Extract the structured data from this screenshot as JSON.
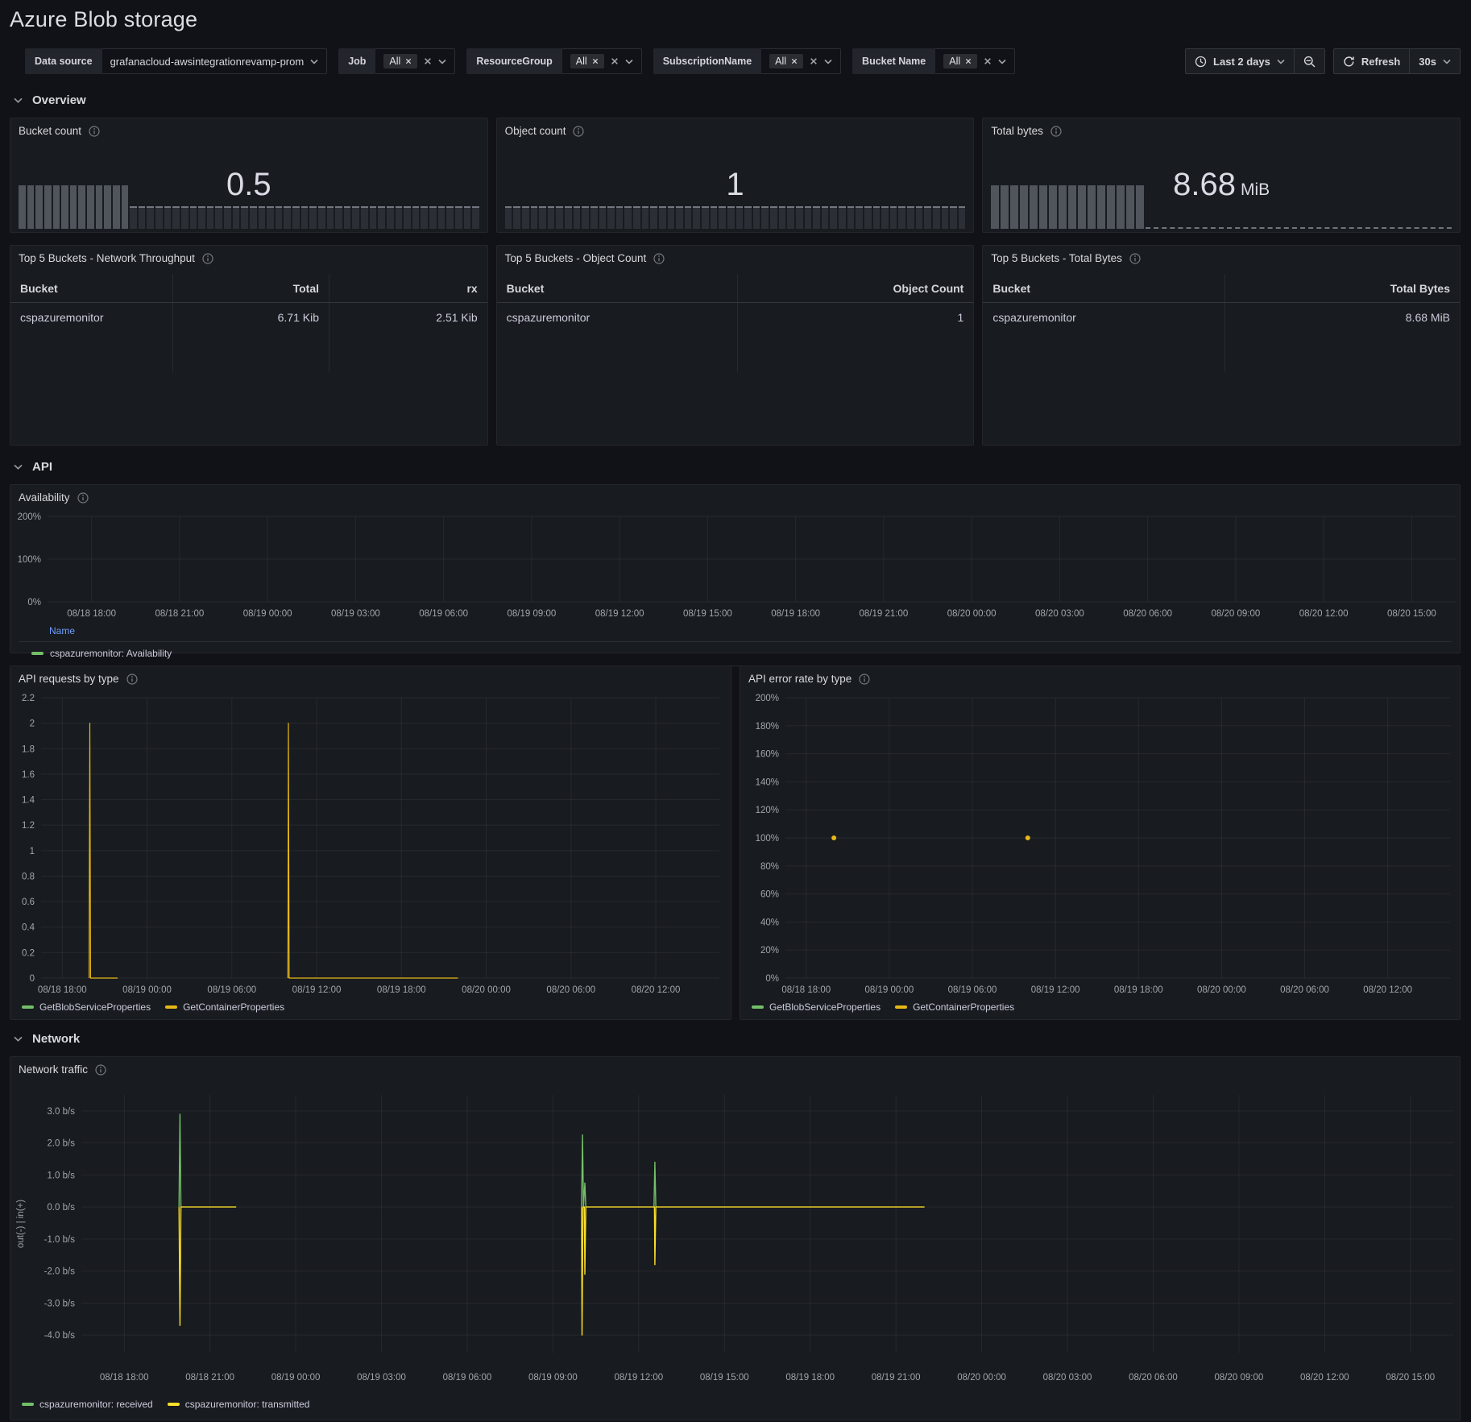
{
  "page": {
    "title": "Azure Blob storage"
  },
  "toolbar": {
    "filters": [
      {
        "label": "Data source",
        "type": "select",
        "value": "grafanacloud-awsintegrationrevamp-prom"
      },
      {
        "label": "Job",
        "type": "multi",
        "chip": "All"
      },
      {
        "label": "ResourceGroup",
        "type": "multi",
        "chip": "All"
      },
      {
        "label": "SubscriptionName",
        "type": "multi",
        "chip": "All"
      },
      {
        "label": "Bucket Name",
        "type": "multi",
        "chip": "All"
      }
    ],
    "time_range": "Last 2 days",
    "refresh_label": "Refresh",
    "refresh_interval": "30s"
  },
  "icons": {
    "clock-icon": "clock face",
    "chevron-down-icon": "v",
    "zoom-out-icon": "magnifier with minus",
    "refresh-icon": "circular arrow",
    "info-icon": "circled i",
    "close-icon": "x",
    "section-chevron-icon": "v"
  },
  "sections": {
    "overview": "Overview",
    "api": "API",
    "network": "Network"
  },
  "stats": [
    {
      "title": "Bucket count",
      "value": "0.5",
      "unit": "",
      "gauge": {
        "cells_total": 54,
        "cells_lit": 13,
        "unlit_style": "cells"
      }
    },
    {
      "title": "Object count",
      "value": "1",
      "unit": "",
      "gauge": {
        "cells_total": 54,
        "cells_lit": 0,
        "unlit_style": "cells"
      }
    },
    {
      "title": "Total bytes",
      "value": "8.68",
      "unit": "MiB",
      "gauge": {
        "cells_total": 54,
        "cells_lit": 16,
        "unlit_style": "line"
      }
    }
  ],
  "tables": [
    {
      "title": "Top 5 Buckets - Network Throughput",
      "columns": [
        "Bucket",
        "Total",
        "rx"
      ],
      "col_template": "202px 194px 1fr",
      "rows": [
        [
          "cspazuremonitor",
          "6.71 Kib",
          "2.51 Kib"
        ]
      ]
    },
    {
      "title": "Top 5 Buckets - Object Count",
      "columns": [
        "Bucket",
        "Object Count"
      ],
      "col_template": "299px 1fr",
      "rows": [
        [
          "cspazuremonitor",
          "1"
        ]
      ]
    },
    {
      "title": "Top 5 Buckets - Total Bytes",
      "columns": [
        "Bucket",
        "Total Bytes"
      ],
      "col_template": "301px 1fr",
      "rows": [
        [
          "cspazuremonitor",
          "8.68 MiB"
        ]
      ]
    }
  ],
  "colors": {
    "green": "#73bf69",
    "yellow": "#e6b817",
    "yellow_bright": "#fade2a",
    "blue": "#6e9fff"
  },
  "chart_data": [
    {
      "id": "availability",
      "type": "line",
      "title": "Availability",
      "x_domain": [
        "08/18 16:30",
        "08/20 16:30"
      ],
      "x_ticks": [
        "08/18 18:00",
        "08/18 21:00",
        "08/19 00:00",
        "08/19 03:00",
        "08/19 06:00",
        "08/19 09:00",
        "08/19 12:00",
        "08/19 15:00",
        "08/19 18:00",
        "08/19 21:00",
        "08/20 00:00",
        "08/20 03:00",
        "08/20 06:00",
        "08/20 09:00",
        "08/20 12:00",
        "08/20 15:00"
      ],
      "y_ticks": [
        {
          "v": 0,
          "label": "0%"
        },
        {
          "v": 100,
          "label": "100%"
        },
        {
          "v": 200,
          "label": "200%"
        }
      ],
      "y_render_range": [
        0,
        200
      ],
      "legend_style": "table",
      "legend_header": "Name",
      "series": [
        {
          "name": "cspazuremonitor: Availability",
          "color": "#73bf69",
          "draw": "line",
          "points": []
        }
      ]
    },
    {
      "id": "api_requests",
      "type": "line",
      "title": "API requests by type",
      "x_domain": [
        "08/18 16:30",
        "08/20 16:30"
      ],
      "x_ticks": [
        "08/18 18:00",
        "08/19 00:00",
        "08/19 06:00",
        "08/19 12:00",
        "08/19 18:00",
        "08/20 00:00",
        "08/20 06:00",
        "08/20 12:00"
      ],
      "y_ticks": [
        {
          "v": 0,
          "label": "0"
        },
        {
          "v": 0.2,
          "label": "0.2"
        },
        {
          "v": 0.4,
          "label": "0.4"
        },
        {
          "v": 0.6,
          "label": "0.6"
        },
        {
          "v": 0.8,
          "label": "0.8"
        },
        {
          "v": 1,
          "label": "1"
        },
        {
          "v": 1.2,
          "label": "1.2"
        },
        {
          "v": 1.4,
          "label": "1.4"
        },
        {
          "v": 1.6,
          "label": "1.6"
        },
        {
          "v": 1.8,
          "label": "1.8"
        },
        {
          "v": 2,
          "label": "2"
        },
        {
          "v": 2.2,
          "label": "2.2"
        }
      ],
      "y_render_range": [
        0,
        2.2
      ],
      "series": [
        {
          "name": "GetBlobServiceProperties",
          "color": "#73bf69",
          "draw": "line",
          "points": []
        },
        {
          "name": "GetContainerProperties",
          "color": "#e6b817",
          "draw": "line",
          "points": [
            [
              "08/18 19:54",
              0
            ],
            [
              "08/18 19:57",
              2
            ],
            [
              "08/18 20:00",
              0
            ],
            [
              "08/18 21:55",
              0
            ],
            null,
            [
              "08/19 09:58",
              0
            ],
            [
              "08/19 10:00",
              2
            ],
            [
              "08/19 10:03",
              0
            ],
            [
              "08/19 22:00",
              0
            ]
          ]
        }
      ]
    },
    {
      "id": "api_error_rate",
      "type": "scatter",
      "title": "API error rate by type",
      "x_domain": [
        "08/18 16:30",
        "08/20 16:30"
      ],
      "x_ticks": [
        "08/18 18:00",
        "08/19 00:00",
        "08/19 06:00",
        "08/19 12:00",
        "08/19 18:00",
        "08/20 00:00",
        "08/20 06:00",
        "08/20 12:00"
      ],
      "y_ticks": [
        {
          "v": 0,
          "label": "0%"
        },
        {
          "v": 20,
          "label": "20%"
        },
        {
          "v": 40,
          "label": "40%"
        },
        {
          "v": 60,
          "label": "60%"
        },
        {
          "v": 80,
          "label": "80%"
        },
        {
          "v": 100,
          "label": "100%"
        },
        {
          "v": 120,
          "label": "120%"
        },
        {
          "v": 140,
          "label": "140%"
        },
        {
          "v": 160,
          "label": "160%"
        },
        {
          "v": 180,
          "label": "180%"
        },
        {
          "v": 200,
          "label": "200%"
        }
      ],
      "y_render_range": [
        0,
        200
      ],
      "series": [
        {
          "name": "GetBlobServiceProperties",
          "color": "#73bf69",
          "draw": "points",
          "points": []
        },
        {
          "name": "GetContainerProperties",
          "color": "#e6b817",
          "draw": "points",
          "points": [
            [
              "08/18 20:00",
              100
            ],
            [
              "08/19 10:00",
              100
            ]
          ]
        }
      ]
    },
    {
      "id": "network_traffic",
      "type": "line",
      "title": "Network traffic",
      "y_axis_label": "out(-) | in(+)",
      "x_domain": [
        "08/18 16:30",
        "08/20 16:30"
      ],
      "x_ticks": [
        "08/18 18:00",
        "08/18 21:00",
        "08/19 00:00",
        "08/19 03:00",
        "08/19 06:00",
        "08/19 09:00",
        "08/19 12:00",
        "08/19 15:00",
        "08/19 18:00",
        "08/19 21:00",
        "08/20 00:00",
        "08/20 03:00",
        "08/20 06:00",
        "08/20 09:00",
        "08/20 12:00",
        "08/20 15:00"
      ],
      "y_ticks": [
        {
          "v": 3,
          "label": "3.0 b/s"
        },
        {
          "v": 2,
          "label": "2.0 b/s"
        },
        {
          "v": 1,
          "label": "1.0 b/s"
        },
        {
          "v": 0,
          "label": "0.0 b/s"
        },
        {
          "v": -1,
          "label": "-1.0 b/s"
        },
        {
          "v": -2,
          "label": "-2.0 b/s"
        },
        {
          "v": -3,
          "label": "-3.0 b/s"
        },
        {
          "v": -4,
          "label": "-4.0 b/s"
        }
      ],
      "y_render_range": [
        -4.55,
        3.5
      ],
      "series": [
        {
          "name": "cspazuremonitor: received",
          "color": "#73bf69",
          "draw": "line",
          "points": [
            [
              "08/18 19:55",
              0
            ],
            [
              "08/18 19:57",
              2.9
            ],
            [
              "08/18 19:59",
              0
            ],
            null,
            [
              "08/19 10:00",
              0
            ],
            [
              "08/19 10:02",
              2.25
            ],
            [
              "08/19 10:04",
              0
            ],
            [
              "08/19 10:07",
              0.75
            ],
            [
              "08/19 10:09",
              0
            ],
            null,
            [
              "08/19 12:32",
              0
            ],
            [
              "08/19 12:34",
              1.4
            ],
            [
              "08/19 12:36",
              0
            ]
          ]
        },
        {
          "name": "cspazuremonitor: transmitted",
          "color": "#fade2a",
          "draw": "line",
          "points": [
            [
              "08/18 19:55",
              0
            ],
            [
              "08/18 19:57",
              -3.7
            ],
            [
              "08/18 19:59",
              0
            ],
            [
              "08/18 21:55",
              0
            ],
            null,
            [
              "08/19 10:00",
              0
            ],
            [
              "08/19 10:01",
              -4
            ],
            [
              "08/19 10:03",
              0
            ],
            [
              "08/19 10:06",
              0
            ],
            [
              "08/19 10:07",
              -2.1
            ],
            [
              "08/19 10:09",
              0
            ],
            [
              "08/19 12:33",
              0
            ],
            [
              "08/19 12:34",
              -1.8
            ],
            [
              "08/19 12:36",
              0
            ],
            [
              "08/19 22:00",
              0
            ]
          ]
        }
      ]
    }
  ]
}
